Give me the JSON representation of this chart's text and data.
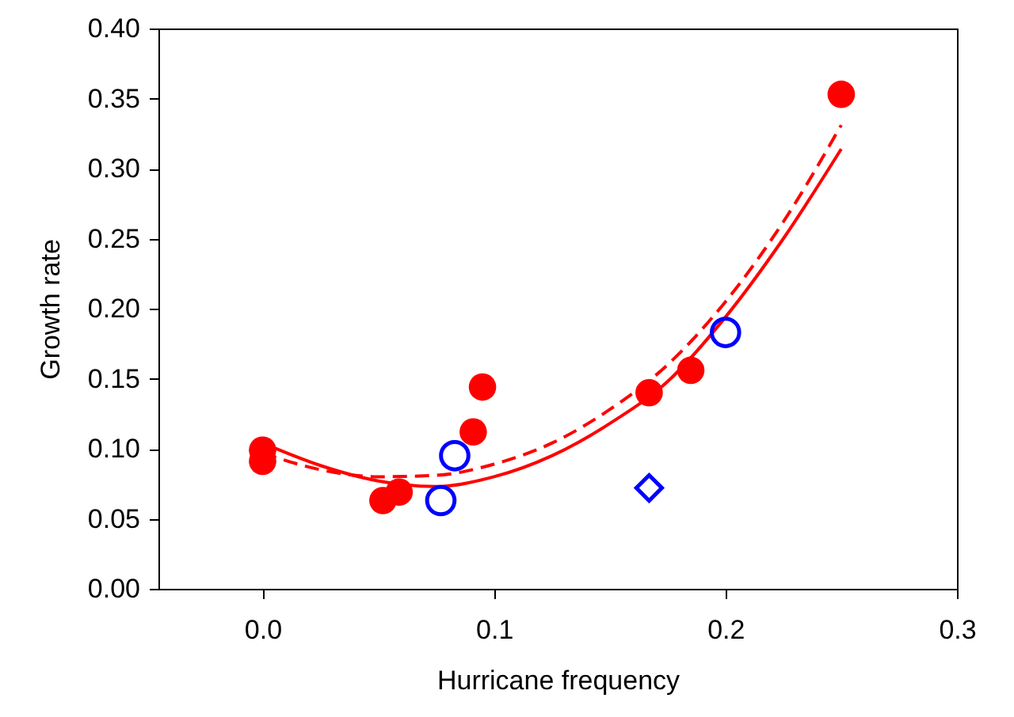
{
  "chart_data": {
    "type": "scatter",
    "xlabel": "Hurricane frequency",
    "ylabel": "Growth rate",
    "xlim": [
      -0.045,
      0.3
    ],
    "xticks": [
      {
        "value": 0,
        "label": "0.0"
      },
      {
        "value": 0.1,
        "label": "0.1"
      },
      {
        "value": 0.2,
        "label": "0.2"
      },
      {
        "value": 0.3,
        "label": "0.3"
      }
    ],
    "ylim": [
      0,
      0.4
    ],
    "yticks": [
      {
        "value": 0,
        "label": "0.00"
      },
      {
        "value": 0.05,
        "label": "0.05"
      },
      {
        "value": 0.1,
        "label": "0.10"
      },
      {
        "value": 0.15,
        "label": "0.15"
      },
      {
        "value": 0.2,
        "label": "0.20"
      },
      {
        "value": 0.25,
        "label": "0.25"
      },
      {
        "value": 0.3,
        "label": "0.30"
      },
      {
        "value": 0.35,
        "label": "0.35"
      },
      {
        "value": 0.4,
        "label": "0.40"
      }
    ],
    "grid": false,
    "series": [
      {
        "type": "line",
        "color": "#ff0000",
        "line_style": "solid",
        "marker": "none",
        "x": [
          0,
          0.025,
          0.05,
          0.075,
          0.1,
          0.125,
          0.15,
          0.175,
          0.2,
          0.225,
          0.25
        ],
        "values": [
          0.104,
          0.088,
          0.077,
          0.073,
          0.08,
          0.095,
          0.118,
          0.148,
          0.194,
          0.25,
          0.314
        ]
      },
      {
        "type": "line",
        "color": "#ff0000",
        "line_style": "dashed",
        "marker": "none",
        "x": [
          0,
          0.025,
          0.05,
          0.075,
          0.1,
          0.125,
          0.15,
          0.175,
          0.2,
          0.225,
          0.25
        ],
        "values": [
          0.097,
          0.085,
          0.08,
          0.081,
          0.089,
          0.104,
          0.128,
          0.16,
          0.205,
          0.262,
          0.331
        ]
      },
      {
        "color": "#ff0000",
        "marker": "circle",
        "x": [
          0,
          0,
          0.052,
          0.059,
          0.091,
          0.095,
          0.167,
          0.185,
          0.25
        ],
        "values": [
          0.099,
          0.091,
          0.063,
          0.069,
          0.112,
          0.144,
          0.14,
          0.156,
          0.353
        ]
      },
      {
        "color": "#0000ff",
        "marker": "circle",
        "x": [
          0.077,
          0.083,
          0.2
        ],
        "values": [
          0.063,
          0.095,
          0.183
        ]
      },
      {
        "color": "#0000ff",
        "marker": "diamond",
        "x": [
          0.167
        ],
        "values": [
          0.072
        ]
      }
    ]
  }
}
